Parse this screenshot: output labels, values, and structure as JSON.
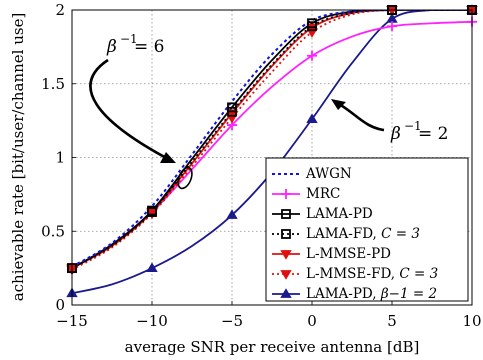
{
  "chart_data": {
    "type": "line",
    "xlabel": "average SNR per receive antenna [dB]",
    "ylabel": "achievable rate [bit/user/channel use]",
    "xlim": [
      -15,
      10
    ],
    "ylim": [
      0,
      2
    ],
    "xticks": [
      -15,
      -10,
      -5,
      0,
      5,
      10
    ],
    "xtick_labels": [
      "−15",
      "−10",
      "−5",
      "0",
      "5",
      "10"
    ],
    "yticks": [
      0,
      0.5,
      1,
      1.5,
      2
    ],
    "ytick_labels": [
      "0",
      "0.5",
      "1",
      "1.5",
      "2"
    ],
    "grid": true,
    "legend_position": "bottom-right",
    "legend": [
      {
        "text": "AWGN"
      },
      {
        "text": "MRC"
      },
      {
        "text": "LAMA-PD"
      },
      {
        "text": "LAMA-FD, ",
        "math": "C = 3"
      },
      {
        "text": "L-MMSE-PD"
      },
      {
        "text": "L-MMSE-FD, ",
        "math": "C = 3"
      },
      {
        "text": "LAMA-PD, ",
        "math": "β−1 = 2"
      }
    ],
    "annotations": [
      {
        "text": "β−1 = 6",
        "base": "β",
        "sup": "−1",
        "rest": " = 6"
      },
      {
        "text": "β−1 = 2",
        "base": "β",
        "sup": "−1",
        "rest": " = 2"
      }
    ],
    "series": [
      {
        "legend_index": 0,
        "color": "#1414d6",
        "dash": "3 3",
        "marker": "none",
        "x": [
          -15,
          -12.5,
          -10,
          -7.5,
          -5,
          -2.5,
          0,
          2.5,
          5,
          7.5,
          10
        ],
        "y": [
          0.26,
          0.42,
          0.67,
          1.02,
          1.38,
          1.7,
          1.93,
          1.99,
          2.0,
          2.0,
          2.0
        ],
        "marks_x": [],
        "marks_y": []
      },
      {
        "legend_index": 1,
        "color": "#ff22ff",
        "dash": "",
        "marker": "plus",
        "x": [
          -15,
          -12.5,
          -10,
          -7.5,
          -5,
          -2.5,
          0,
          2.5,
          5,
          7.5,
          10
        ],
        "y": [
          0.25,
          0.41,
          0.63,
          0.92,
          1.22,
          1.48,
          1.69,
          1.82,
          1.89,
          1.91,
          1.92
        ],
        "marks_x": [
          -15,
          -10,
          -5,
          0,
          5,
          10
        ],
        "marks_y": [
          0.25,
          0.63,
          1.22,
          1.69,
          1.89,
          1.92
        ]
      },
      {
        "legend_index": 2,
        "color": "#000000",
        "dash": "",
        "marker": "square",
        "x": [
          -15,
          -12.5,
          -10,
          -7.5,
          -5,
          -2.5,
          0,
          2.5,
          5,
          7.5,
          10
        ],
        "y": [
          0.25,
          0.41,
          0.64,
          0.99,
          1.34,
          1.66,
          1.91,
          1.99,
          2.0,
          2.0,
          2.0
        ],
        "marks_x": [
          -15,
          -10,
          -5,
          0,
          5,
          10
        ],
        "marks_y": [
          0.25,
          0.64,
          1.34,
          1.91,
          2.0,
          2.0
        ]
      },
      {
        "legend_index": 3,
        "color": "#000000",
        "dash": "2 3",
        "marker": "square",
        "x": [
          -15,
          -12.5,
          -10,
          -7.5,
          -5,
          -2.5,
          0,
          2.5,
          5,
          7.5,
          10
        ],
        "y": [
          0.25,
          0.4,
          0.63,
          0.97,
          1.31,
          1.63,
          1.89,
          1.98,
          2.0,
          2.0,
          2.0
        ],
        "marks_x": [
          -15,
          -10,
          -5,
          0,
          5,
          10
        ],
        "marks_y": [
          0.25,
          0.63,
          1.31,
          1.89,
          2.0,
          2.0
        ]
      },
      {
        "legend_index": 4,
        "color": "#e01010",
        "dash": "",
        "marker": "triangle-down",
        "x": [
          -15,
          -12.5,
          -10,
          -7.5,
          -5,
          -2.5,
          0,
          2.5,
          5,
          7.5,
          10
        ],
        "y": [
          0.25,
          0.4,
          0.63,
          0.96,
          1.3,
          1.62,
          1.88,
          1.98,
          2.0,
          2.0,
          2.0
        ],
        "marks_x": [
          -15,
          -10,
          -5,
          0,
          5,
          10
        ],
        "marks_y": [
          0.25,
          0.63,
          1.3,
          1.88,
          2.0,
          2.0
        ]
      },
      {
        "legend_index": 5,
        "color": "#e01010",
        "dash": "2 3",
        "marker": "triangle-down",
        "x": [
          -15,
          -12.5,
          -10,
          -7.5,
          -5,
          -2.5,
          0,
          2.5,
          5,
          7.5,
          10
        ],
        "y": [
          0.24,
          0.39,
          0.62,
          0.94,
          1.27,
          1.58,
          1.85,
          1.97,
          2.0,
          2.0,
          2.0
        ],
        "marks_x": [
          -15,
          -10,
          -5,
          0,
          5,
          10
        ],
        "marks_y": [
          0.24,
          0.62,
          1.27,
          1.85,
          2.0,
          2.0
        ]
      },
      {
        "legend_index": 6,
        "color": "#1a1a8c",
        "dash": "",
        "marker": "triangle-up",
        "x": [
          -15,
          -12.5,
          -10,
          -7.5,
          -5,
          -2.5,
          0,
          2.5,
          5,
          7.5,
          10
        ],
        "y": [
          0.08,
          0.14,
          0.25,
          0.4,
          0.61,
          0.9,
          1.26,
          1.64,
          1.94,
          2.0,
          2.0
        ],
        "marks_x": [
          -15,
          -10,
          -5,
          0,
          5,
          10
        ],
        "marks_y": [
          0.08,
          0.25,
          0.61,
          1.26,
          1.94,
          2.0
        ]
      }
    ]
  }
}
